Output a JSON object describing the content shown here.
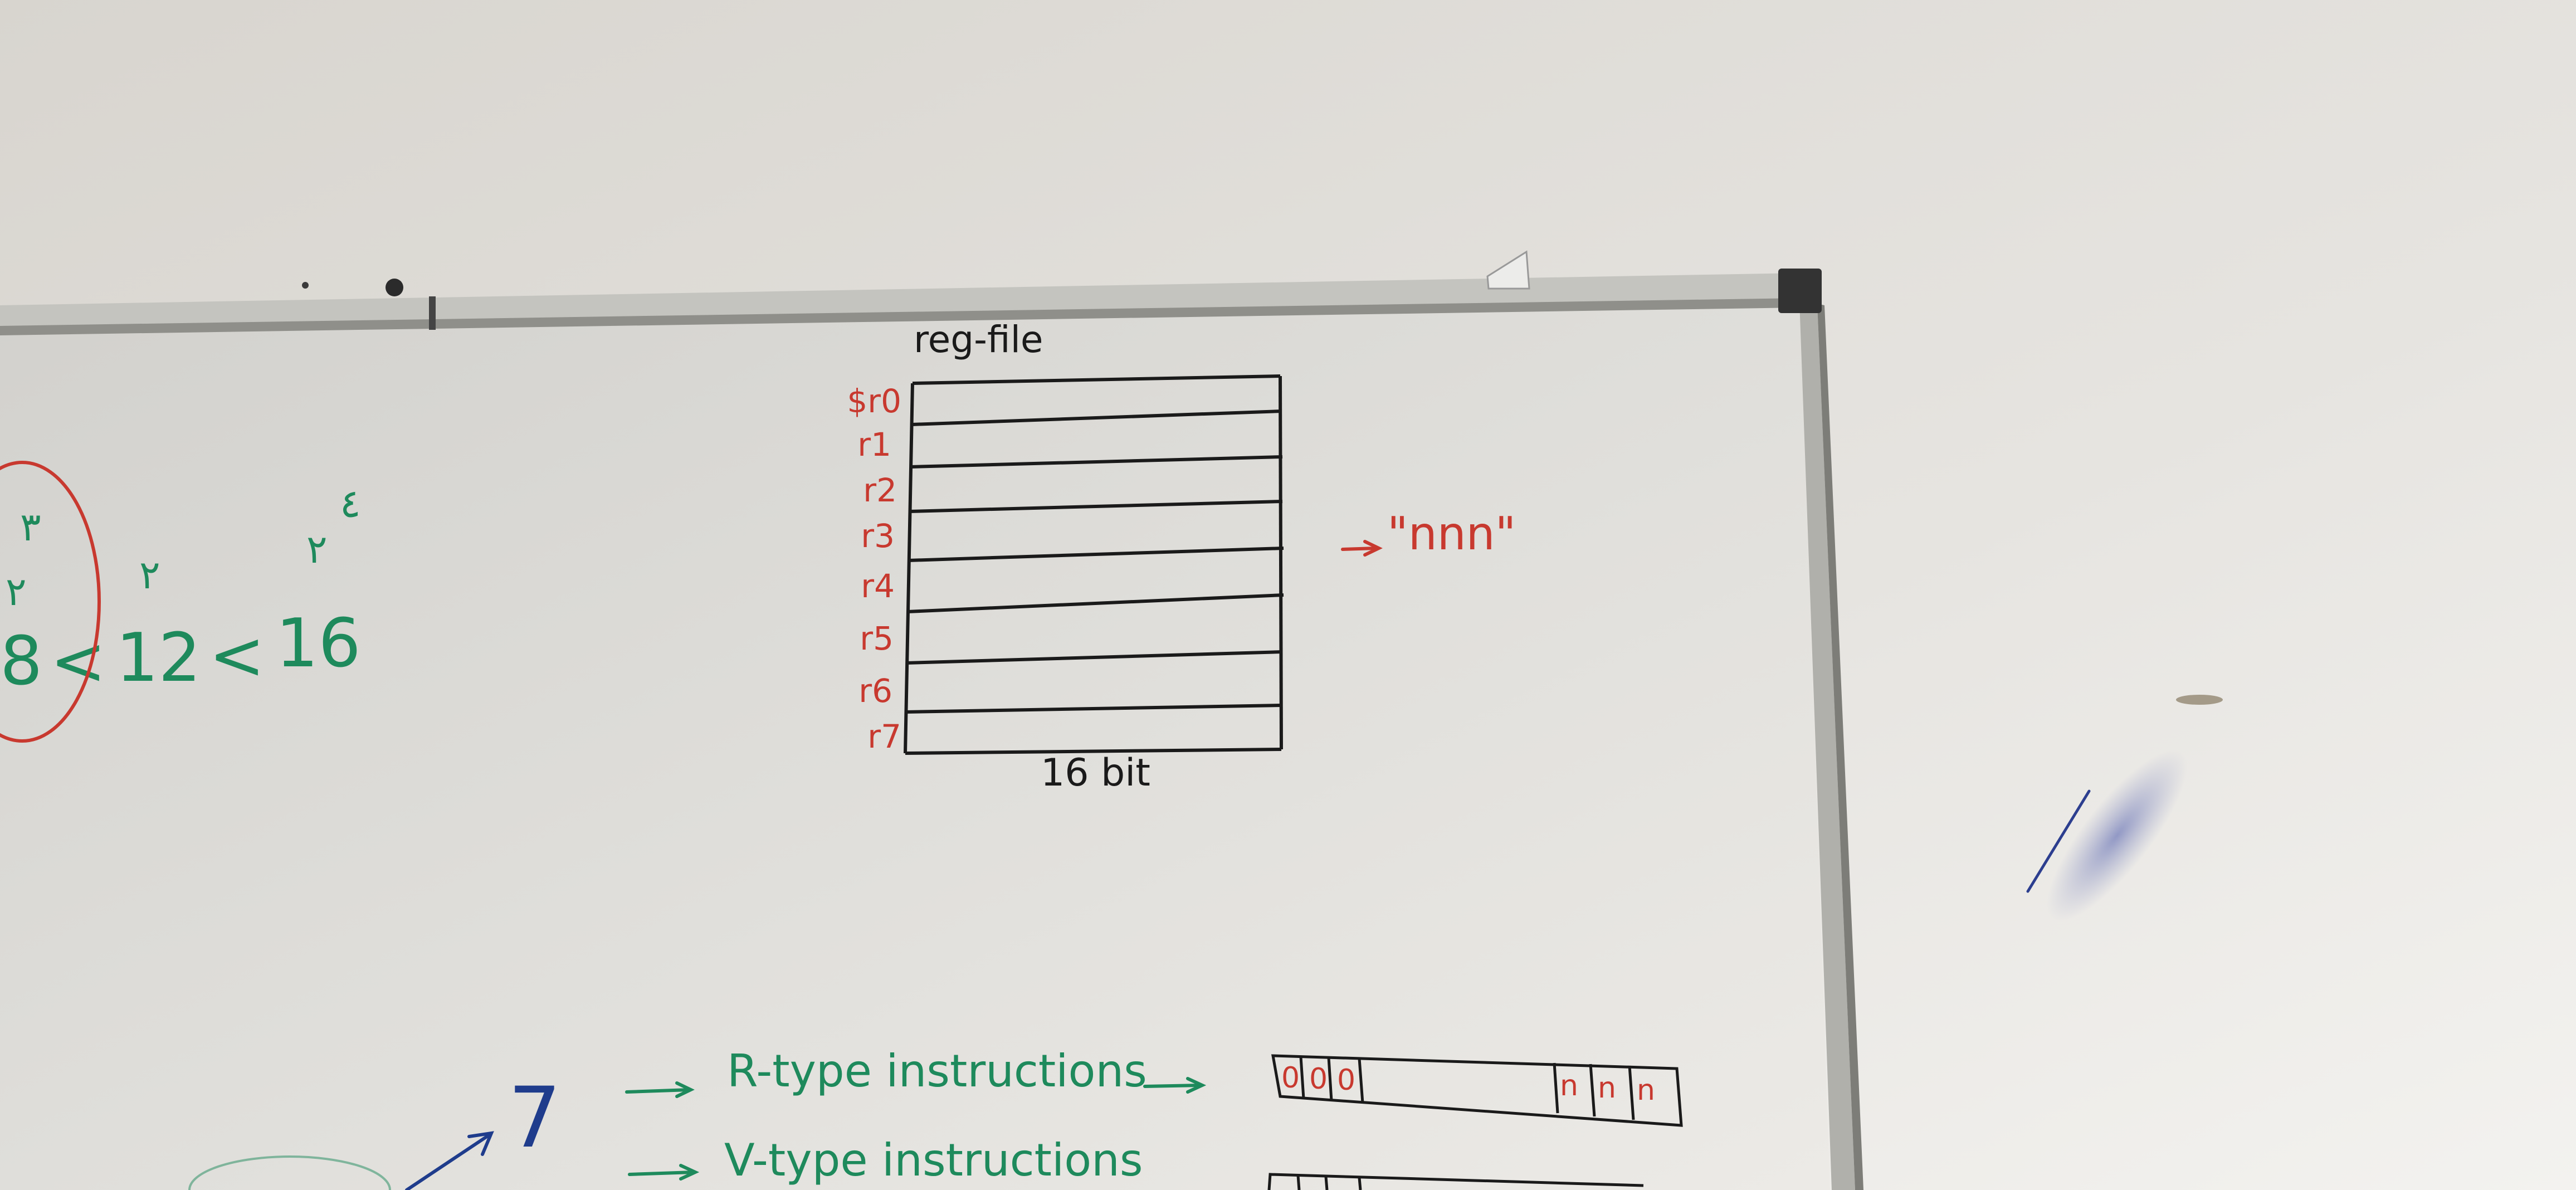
{
  "colors": {
    "wall": "#e4e1dc",
    "wall_light": "#f2f1ee",
    "board": "#dcdbd7",
    "board_light": "#e9e8e5",
    "frame": "#b9b9b4",
    "frame_dark": "#3a3a3a",
    "ink_black": "#1a1a1a",
    "ink_red": "#c8392f",
    "ink_green": "#1e8a5c",
    "ink_blue": "#1f3c8c",
    "smudge_blue": "#8a93c4"
  },
  "whiteboard": {
    "reg_file_title": "reg-file",
    "registers": [
      "$r0",
      "r1",
      "r2",
      "r3",
      "r4",
      "r5",
      "r6",
      "r7"
    ],
    "width_label": "16 bit",
    "arrow_label": "\"nnn\"",
    "left_notes": {
      "numbers": [
        "8",
        "<",
        "12",
        "<",
        "16"
      ],
      "exponents": [
        "٣",
        "٢",
        "٢",
        "٢",
        "٤"
      ]
    },
    "instructions": [
      {
        "label": "R-type instructions",
        "bits": [
          "0",
          "0",
          "0",
          "",
          "n",
          "n",
          "n"
        ]
      },
      {
        "label": "V-type instructions",
        "bits": []
      }
    ],
    "blue_number": "7"
  }
}
